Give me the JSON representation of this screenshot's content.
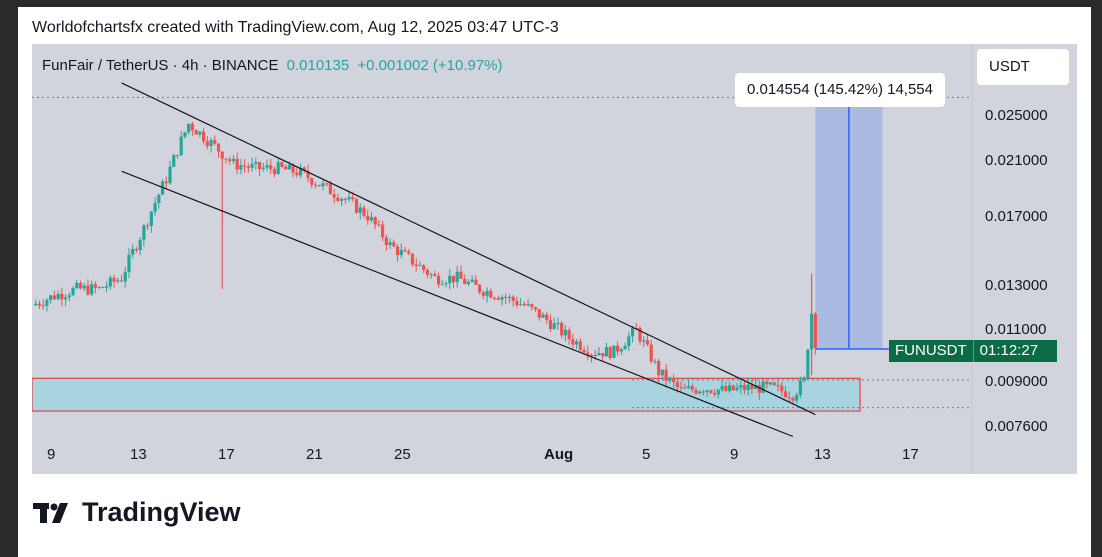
{
  "byline": "Worldofchartsfx created with TradingView.com, Aug 12, 2025 03:47 UTC-3",
  "legend": {
    "symbol": "FunFair / TetherUS · 4h · BINANCE",
    "last": "0.010135",
    "change": "+0.001002 (+10.97%)"
  },
  "currency_button": "USDT",
  "measure_label": "0.014554 (145.42%) 14,554",
  "price_tag": {
    "symbol": "FUNUSDT",
    "countdown": "01:12:27"
  },
  "brand": "TradingView",
  "colors": {
    "up": "#26a69a",
    "down": "#ef5350",
    "zone_fill": "#a8d3df",
    "zone_border": "#e04646",
    "measure": "#2962ff"
  },
  "chart_data": {
    "type": "candlestick",
    "symbol": "FUNUSDT",
    "y_ticks": [
      "0.025000",
      "0.021000",
      "0.017000",
      "0.013000",
      "0.011000",
      "0.009000",
      "0.007600"
    ],
    "x_ticks": [
      "9",
      "13",
      "17",
      "21",
      "25",
      "Aug",
      "5",
      "9",
      "13",
      "17"
    ],
    "ylim": [
      0.0072,
      0.028
    ],
    "xlim": [
      "2025-07-08",
      "2025-08-19"
    ],
    "last_price": 0.010135,
    "price_path": [
      [
        "2025-07-08",
        0.0118
      ],
      [
        "2025-07-09",
        0.0122
      ],
      [
        "2025-07-10",
        0.0125
      ],
      [
        "2025-07-11",
        0.0125
      ],
      [
        "2025-07-12",
        0.013
      ],
      [
        "2025-07-13",
        0.0155
      ],
      [
        "2025-07-14",
        0.0185
      ],
      [
        "2025-07-15",
        0.0225
      ],
      [
        "2025-07-16",
        0.021
      ],
      [
        "2025-07-17",
        0.0195
      ],
      [
        "2025-07-18",
        0.0192
      ],
      [
        "2025-07-19",
        0.0192
      ],
      [
        "2025-07-20",
        0.0189
      ],
      [
        "2025-07-21",
        0.018
      ],
      [
        "2025-07-22",
        0.0172
      ],
      [
        "2025-07-23",
        0.0162
      ],
      [
        "2025-07-24",
        0.0146
      ],
      [
        "2025-07-25",
        0.0138
      ],
      [
        "2025-07-26",
        0.013
      ],
      [
        "2025-07-27",
        0.013
      ],
      [
        "2025-07-28",
        0.0125
      ],
      [
        "2025-07-29",
        0.0122
      ],
      [
        "2025-07-30",
        0.0118
      ],
      [
        "2025-07-31",
        0.0112
      ],
      [
        "2025-08-01",
        0.0105
      ],
      [
        "2025-08-02",
        0.01
      ],
      [
        "2025-08-03",
        0.01
      ],
      [
        "2025-08-04",
        0.0108
      ],
      [
        "2025-08-05",
        0.0093
      ],
      [
        "2025-08-06",
        0.0087
      ],
      [
        "2025-08-07",
        0.0088
      ],
      [
        "2025-08-08",
        0.0087
      ],
      [
        "2025-08-09",
        0.0088
      ],
      [
        "2025-08-10",
        0.0088
      ],
      [
        "2025-08-11",
        0.0086
      ],
      [
        "2025-08-11T12:00",
        0.009
      ],
      [
        "2025-08-11T20:00",
        0.0115
      ],
      [
        "2025-08-12",
        0.0101
      ]
    ],
    "channel": {
      "upper": [
        [
          "2025-07-12",
          0.026
        ],
        [
          "2025-08-12",
          0.008
        ]
      ],
      "lower": [
        [
          "2025-07-12",
          0.019
        ],
        [
          "2025-08-11",
          0.0074
        ]
      ]
    },
    "support_zone": {
      "from": "2025-07-08",
      "to": "2025-08-14",
      "high": 0.0091,
      "low": 0.0081
    },
    "projection": {
      "from_date": "2025-08-12",
      "to_date": "2025-08-15",
      "start": 0.0101,
      "target": 0.0247,
      "change": 0.014554,
      "change_pct": 145.42,
      "ticks": 14554
    }
  }
}
